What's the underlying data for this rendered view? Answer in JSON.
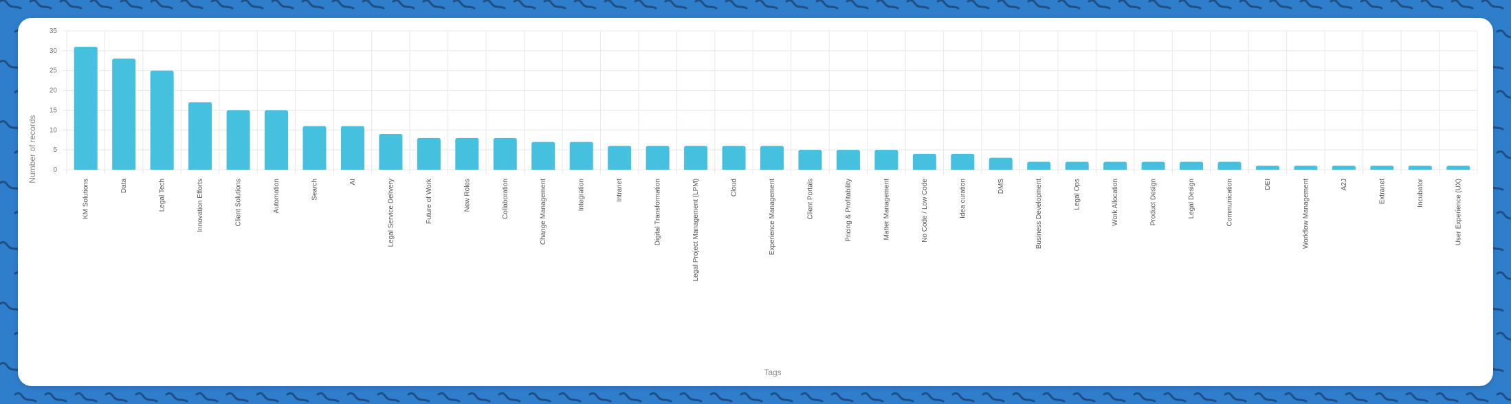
{
  "colors": {
    "background": "#2f7ecb",
    "squiggle": "#1e4f86",
    "card": "#ffffff",
    "bar": "#45c0de",
    "grid": "#e8e8e8"
  },
  "chart_data": {
    "type": "bar",
    "xlabel": "Tags",
    "ylabel": "Number of records",
    "ylim": [
      0,
      35
    ],
    "yticks": [
      0,
      5,
      10,
      15,
      20,
      25,
      30,
      35
    ],
    "grid": true,
    "categories": [
      "KM Solutions",
      "Data",
      "Legal Tech",
      "Innovation Efforts",
      "Client Solutions",
      "Automation",
      "Search",
      "AI",
      "Legal Service Delivery",
      "Future of Work",
      "New Roles",
      "Collaboration",
      "Change Management",
      "Integration",
      "Intranet",
      "Digital Transformation",
      "Legal Project Management (LPM)",
      "Cloud",
      "Experience Management",
      "Client Portals",
      "Pricing & Profitability",
      "Matter Management",
      "No Code / Low Code",
      "Idea curation",
      "DMS",
      "Business Development",
      "Legal Ops",
      "Work Allocation",
      "Product Design",
      "Legal Design",
      "Communication",
      "DEI",
      "Workflow Management",
      "A2J",
      "Extranet",
      "Incubator",
      "User Experience (UX)"
    ],
    "values": [
      31,
      28,
      25,
      17,
      15,
      15,
      11,
      11,
      9,
      8,
      8,
      8,
      7,
      7,
      6,
      6,
      6,
      6,
      6,
      5,
      5,
      5,
      4,
      4,
      3,
      2,
      2,
      2,
      2,
      2,
      2,
      1,
      1,
      1,
      1,
      1,
      1
    ]
  }
}
